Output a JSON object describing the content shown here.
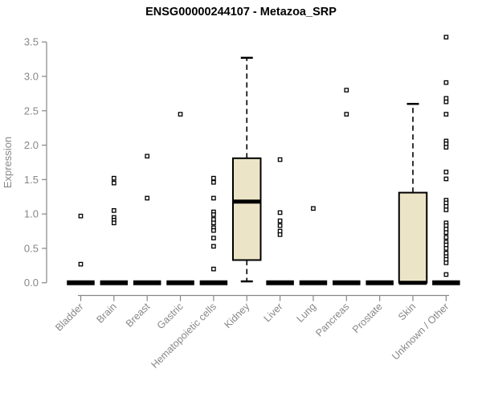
{
  "chart_data": {
    "type": "boxplot",
    "title": "ENSG00000244107 - Metazoa_SRP",
    "ylabel": "Expression",
    "xlabel": "",
    "ylim": [
      0.0,
      3.5
    ],
    "yticks": [
      0.0,
      0.5,
      1.0,
      1.5,
      2.0,
      2.5,
      3.0,
      3.5
    ],
    "grid": false,
    "legend": null,
    "categories": [
      "Bladder",
      "Brain",
      "Breast",
      "Gastric",
      "Hematopoietic cells",
      "Kidney",
      "Liver",
      "Lung",
      "Pancreas",
      "Prostate",
      "Skin",
      "Unknown / Other"
    ],
    "boxes": [
      {
        "category": "Bladder",
        "q1": 0,
        "median": 0,
        "q3": 0,
        "whisker_low": 0,
        "whisker_high": 0,
        "outliers": [
          0.97,
          0.27
        ]
      },
      {
        "category": "Brain",
        "q1": 0,
        "median": 0,
        "q3": 0,
        "whisker_low": 0,
        "whisker_high": 0,
        "outliers": [
          1.52,
          1.45,
          1.05,
          0.95,
          0.91,
          0.87
        ]
      },
      {
        "category": "Breast",
        "q1": 0,
        "median": 0,
        "q3": 0,
        "whisker_low": 0,
        "whisker_high": 0,
        "outliers": [
          1.84,
          1.23
        ]
      },
      {
        "category": "Gastric",
        "q1": 0,
        "median": 0,
        "q3": 0,
        "whisker_low": 0,
        "whisker_high": 0,
        "outliers": [
          2.45
        ]
      },
      {
        "category": "Hematopoietic cells",
        "q1": 0,
        "median": 0,
        "q3": 0,
        "whisker_low": 0,
        "whisker_high": 0,
        "outliers": [
          1.52,
          1.46,
          1.23,
          1.03,
          0.99,
          0.92,
          0.87,
          0.8,
          0.76,
          0.65,
          0.53,
          0.2
        ]
      },
      {
        "category": "Kidney",
        "q1": 0.33,
        "median": 1.18,
        "q3": 1.81,
        "whisker_low": 0.02,
        "whisker_high": 3.27,
        "outliers": []
      },
      {
        "category": "Liver",
        "q1": 0,
        "median": 0,
        "q3": 0,
        "whisker_low": 0,
        "whisker_high": 0,
        "outliers": [
          1.79,
          1.02,
          0.9,
          0.83,
          0.75,
          0.7
        ]
      },
      {
        "category": "Lung",
        "q1": 0,
        "median": 0,
        "q3": 0,
        "whisker_low": 0,
        "whisker_high": 0,
        "outliers": [
          1.08
        ]
      },
      {
        "category": "Pancreas",
        "q1": 0,
        "median": 0,
        "q3": 0,
        "whisker_low": 0,
        "whisker_high": 0,
        "outliers": [
          2.8,
          2.45
        ]
      },
      {
        "category": "Prostate",
        "q1": 0,
        "median": 0,
        "q3": 0,
        "whisker_low": 0,
        "whisker_high": 0,
        "outliers": []
      },
      {
        "category": "Skin",
        "q1": 0,
        "median": 0,
        "q3": 1.31,
        "whisker_low": 0,
        "whisker_high": 2.6,
        "outliers": []
      },
      {
        "category": "Unknown / Other",
        "q1": 0,
        "median": 0,
        "q3": 0,
        "whisker_low": 0,
        "whisker_high": 0,
        "outliers": [
          3.57,
          2.91,
          2.68,
          2.63,
          2.45,
          2.06,
          2.02,
          1.97,
          1.61,
          1.51,
          1.2,
          1.16,
          1.11,
          1.06,
          0.87,
          0.83,
          0.78,
          0.73,
          0.66,
          0.59,
          0.55,
          0.5,
          0.43,
          0.38,
          0.34,
          0.29,
          0.12
        ]
      }
    ],
    "colors": {
      "box_fill": "#ece4c6",
      "box_stroke": "#000000",
      "median": "#000000",
      "whisker": "#000000",
      "outlier_stroke": "#000000",
      "outlier_fill": "#ffffff",
      "axis": "#878787",
      "tick_text": "#878787",
      "title_text": "#000000",
      "background": "#ffffff"
    }
  }
}
